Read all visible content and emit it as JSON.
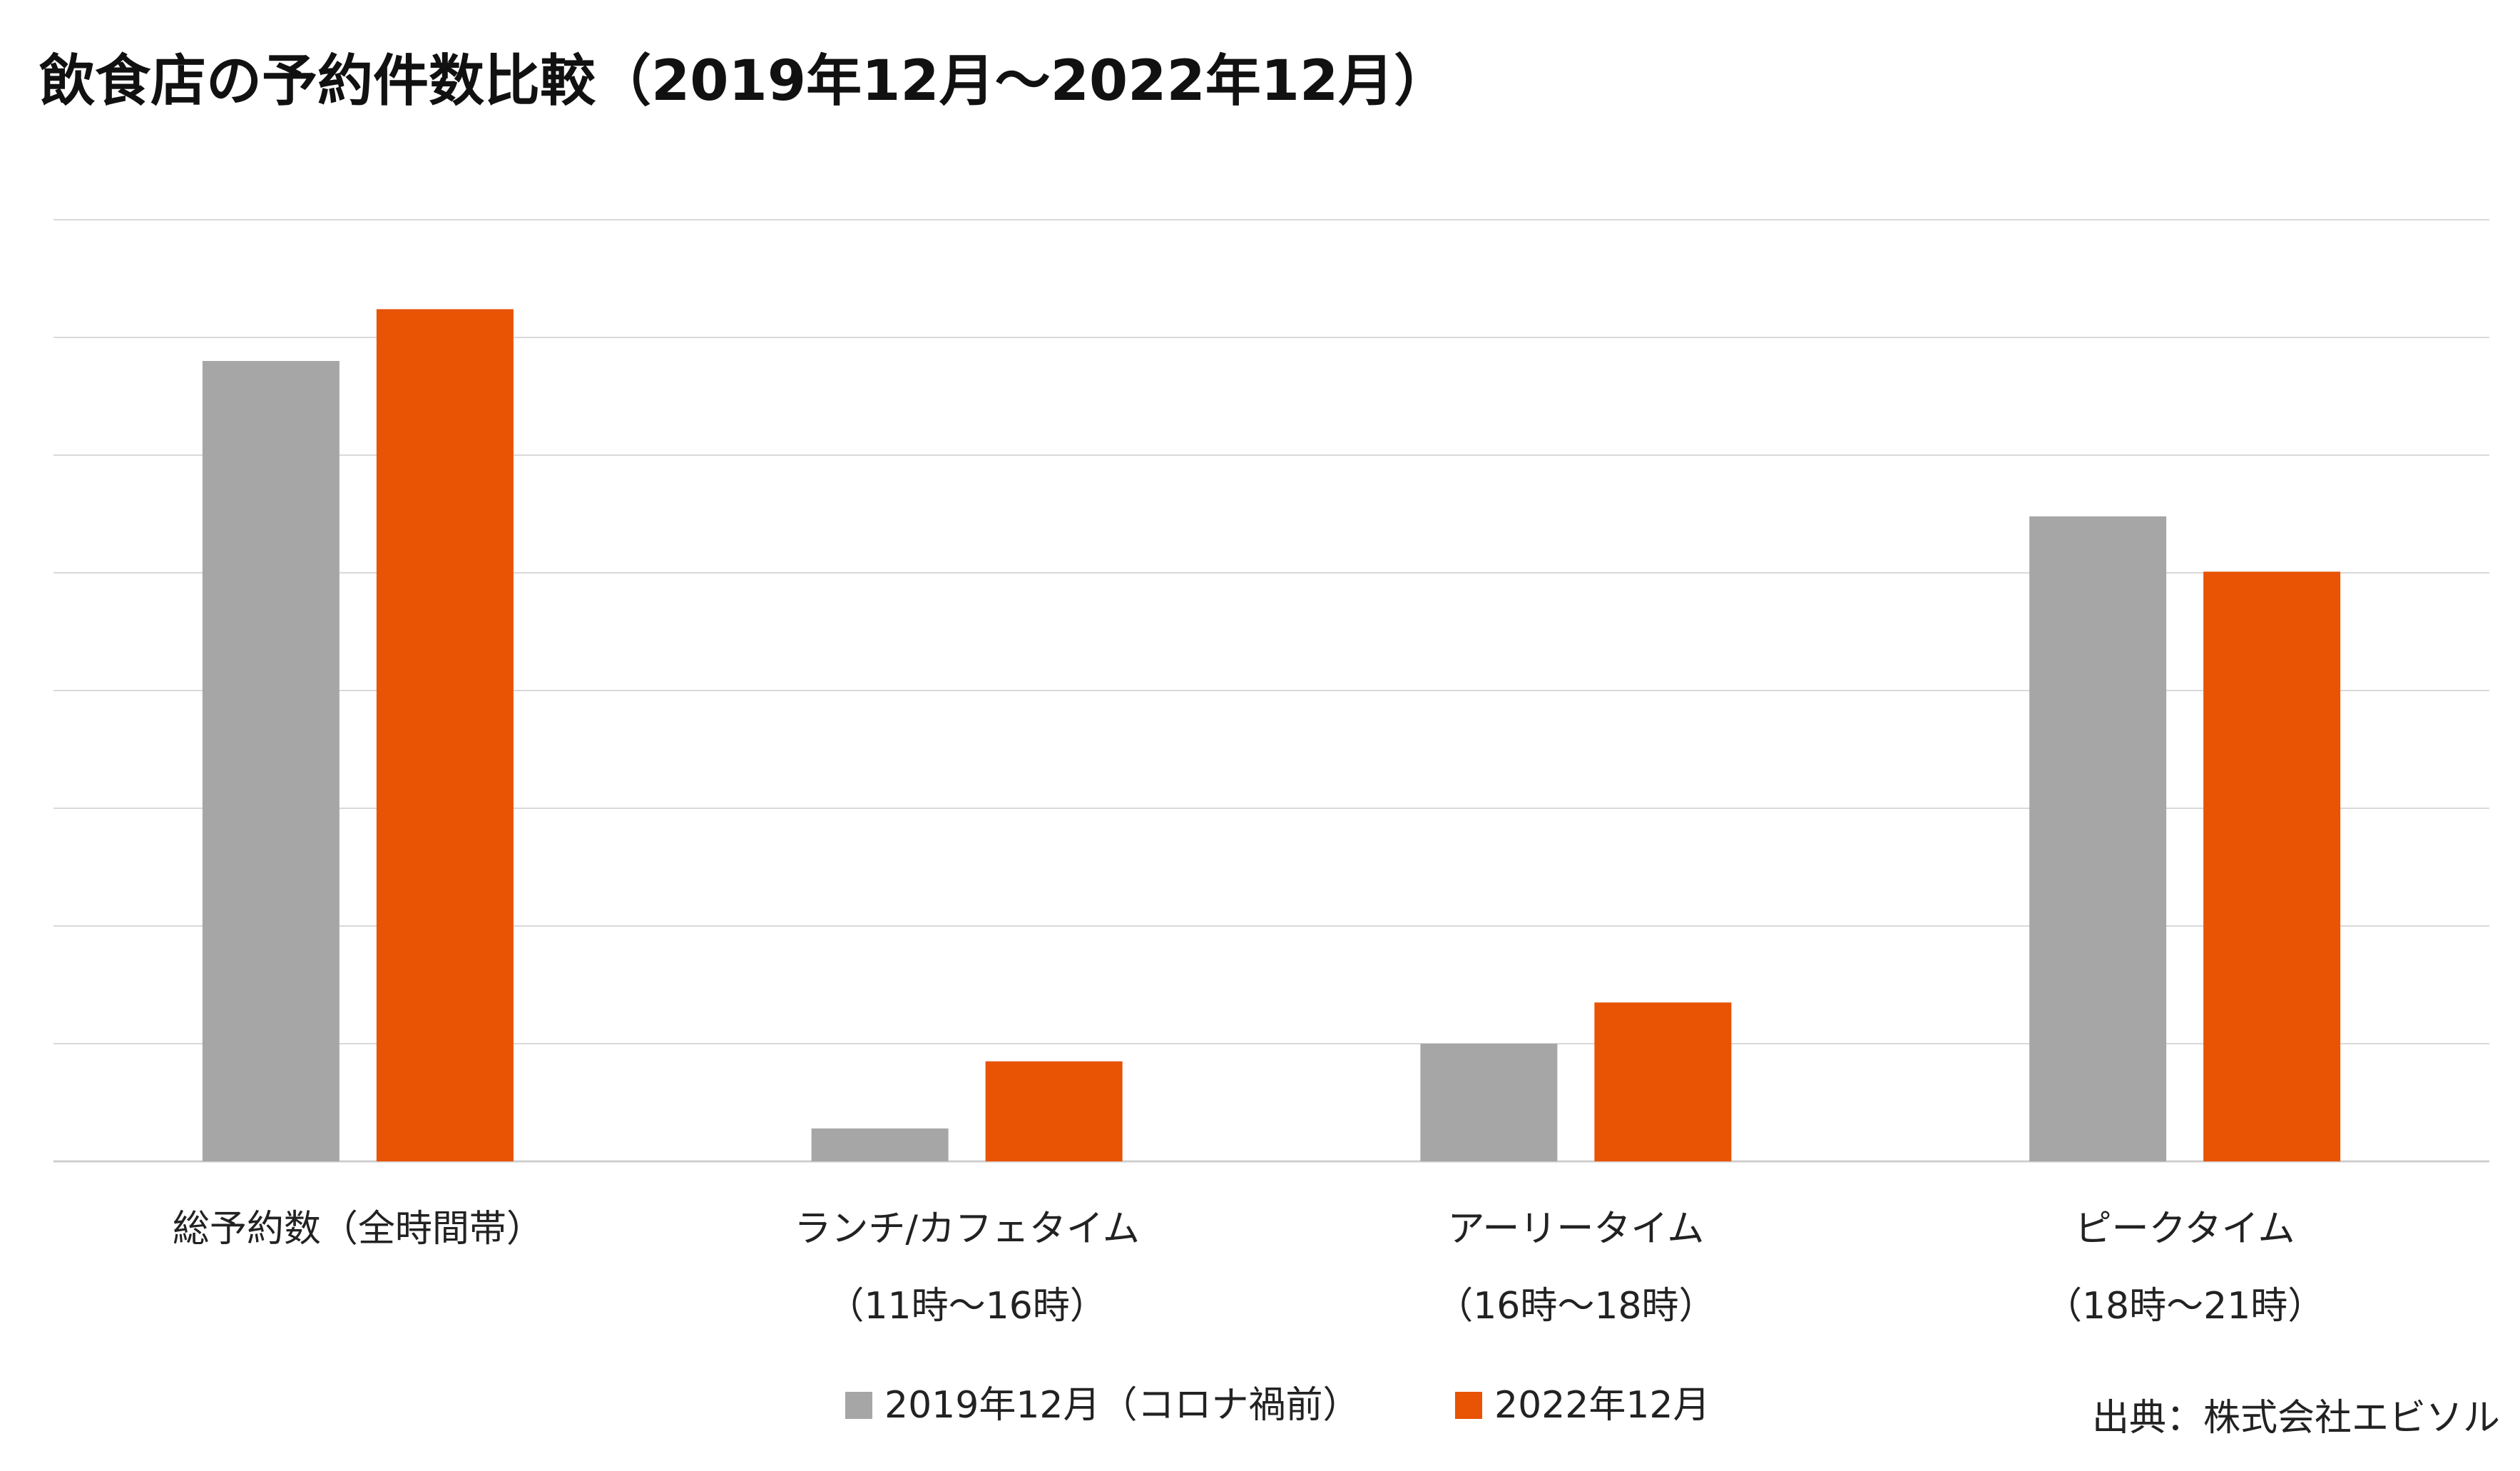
{
  "chart_data": {
    "type": "bar",
    "title": "飲食店の予約件数比較（2019年12月～2022年12月）",
    "categories": [
      [
        "総予約数（全時間帯）"
      ],
      [
        "ランチ/カフェタイム",
        "（11時～16時）"
      ],
      [
        "アーリータイム",
        "（16時～18時）"
      ],
      [
        "ピークタイム",
        "（18時～21時）"
      ]
    ],
    "series": [
      {
        "name": "2019年12月（コロナ禍前）",
        "color": "#a6a6a6",
        "values": [
          6.8,
          0.28,
          1.0,
          5.48
        ]
      },
      {
        "name": "2022年12月",
        "color": "#e85304",
        "values": [
          7.24,
          0.85,
          1.35,
          5.01
        ]
      }
    ],
    "ylim": [
      0,
      8
    ],
    "y_gridlines": 8,
    "grid": true,
    "y_tick_labels": false,
    "legend_position": "bottom",
    "source_note": "出典：株式会社エビソル"
  }
}
